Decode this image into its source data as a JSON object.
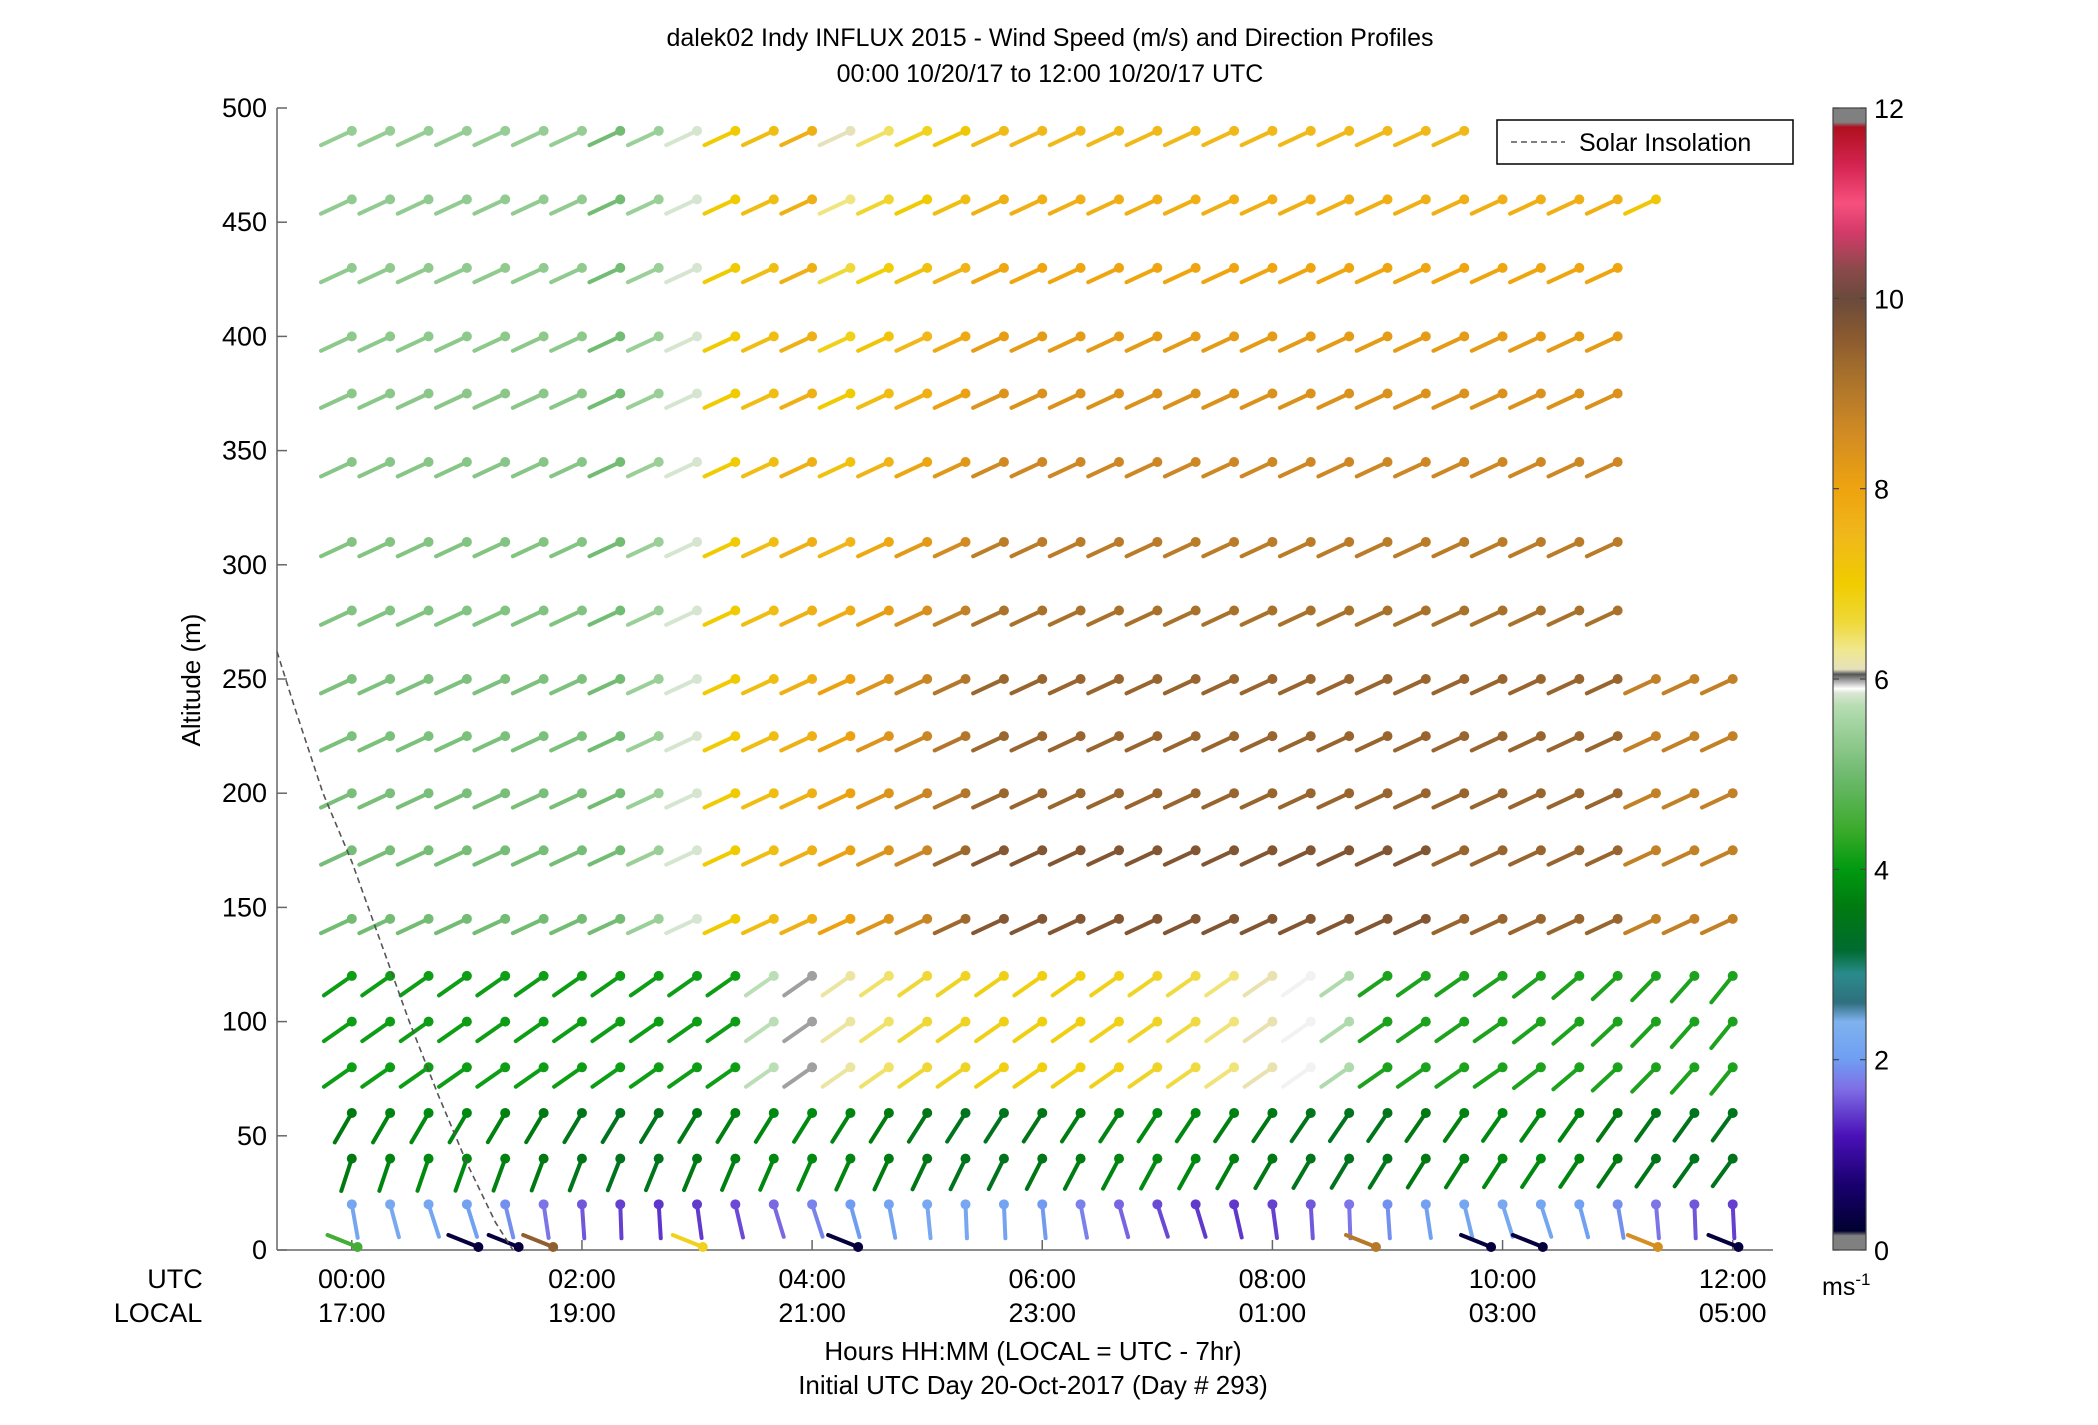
{
  "chart_data": {
    "type": "wind-barb-profile",
    "title_line1": "dalek02 Indy INFLUX 2015 - Wind Speed (m/s) and Direction Profiles",
    "title_line2": "00:00 10/20/17 to 12:00 10/20/17  UTC",
    "ylabel": "Altitude (m)",
    "ylim": [
      0,
      500
    ],
    "yticks": [
      "0",
      "50",
      "100",
      "150",
      "200",
      "250",
      "300",
      "350",
      "400",
      "450",
      "500"
    ],
    "xlim_hours": [
      -0.65,
      12.35
    ],
    "xticks_utc": [
      "00:00",
      "02:00",
      "04:00",
      "06:00",
      "08:00",
      "10:00",
      "12:00"
    ],
    "xticks_local": [
      "17:00",
      "19:00",
      "21:00",
      "23:00",
      "01:00",
      "03:00",
      "05:00"
    ],
    "row_label_utc": "UTC",
    "row_label_local": "LOCAL",
    "xlabel_line1": "Hours HH:MM  (LOCAL = UTC - 7hr)",
    "xlabel_line2": "Initial UTC Day 20-Oct-2017 (Day # 293)",
    "legend": {
      "placement": "top-right",
      "entries": [
        "Solar Insolation"
      ]
    },
    "colorbar": {
      "range": [
        0,
        12
      ],
      "ticks": [
        "0",
        "2",
        "4",
        "6",
        "8",
        "10",
        "12"
      ],
      "unit": "ms",
      "unit_exponent": "-1"
    },
    "altitudes_m": [
      20,
      40,
      60,
      80,
      100,
      120,
      145,
      175,
      200,
      225,
      250,
      280,
      310,
      345,
      375,
      400,
      430,
      460,
      490
    ],
    "times_hours": [
      0,
      0.333,
      0.667,
      1.0,
      1.333,
      1.667,
      2.0,
      2.333,
      2.667,
      3.0,
      3.333,
      3.667,
      4.0,
      4.333,
      4.667,
      5.0,
      5.333,
      5.667,
      6.0,
      6.333,
      6.667,
      7.0,
      7.333,
      7.667,
      8.0,
      8.333,
      8.667,
      9.0,
      9.333,
      9.667,
      10.0,
      10.333,
      10.667,
      11.0,
      11.333,
      11.667,
      12.0
    ],
    "solar_insolation_hours": [
      [
        -0.65,
        262
      ],
      [
        -0.5,
        238
      ],
      [
        -0.25,
        200
      ],
      [
        0.0,
        170
      ],
      [
        0.25,
        135
      ],
      [
        0.5,
        100
      ],
      [
        0.75,
        68
      ],
      [
        1.0,
        38
      ],
      [
        1.25,
        12
      ],
      [
        1.4,
        0
      ]
    ],
    "surface_obs": [
      {
        "t": 0.05,
        "speed": 4.5
      },
      {
        "t": 1.1,
        "speed": 0.3
      },
      {
        "t": 1.45,
        "speed": 0.3
      },
      {
        "t": 1.75,
        "speed": 9.5
      },
      {
        "t": 3.05,
        "speed": 6.8
      },
      {
        "t": 4.4,
        "speed": 0.3
      },
      {
        "t": 8.9,
        "speed": 9.0
      },
      {
        "t": 9.9,
        "speed": 0.3
      },
      {
        "t": 10.35,
        "speed": 0.3
      },
      {
        "t": 11.35,
        "speed": 8.5
      },
      {
        "t": 12.05,
        "speed": 0.3
      }
    ]
  }
}
